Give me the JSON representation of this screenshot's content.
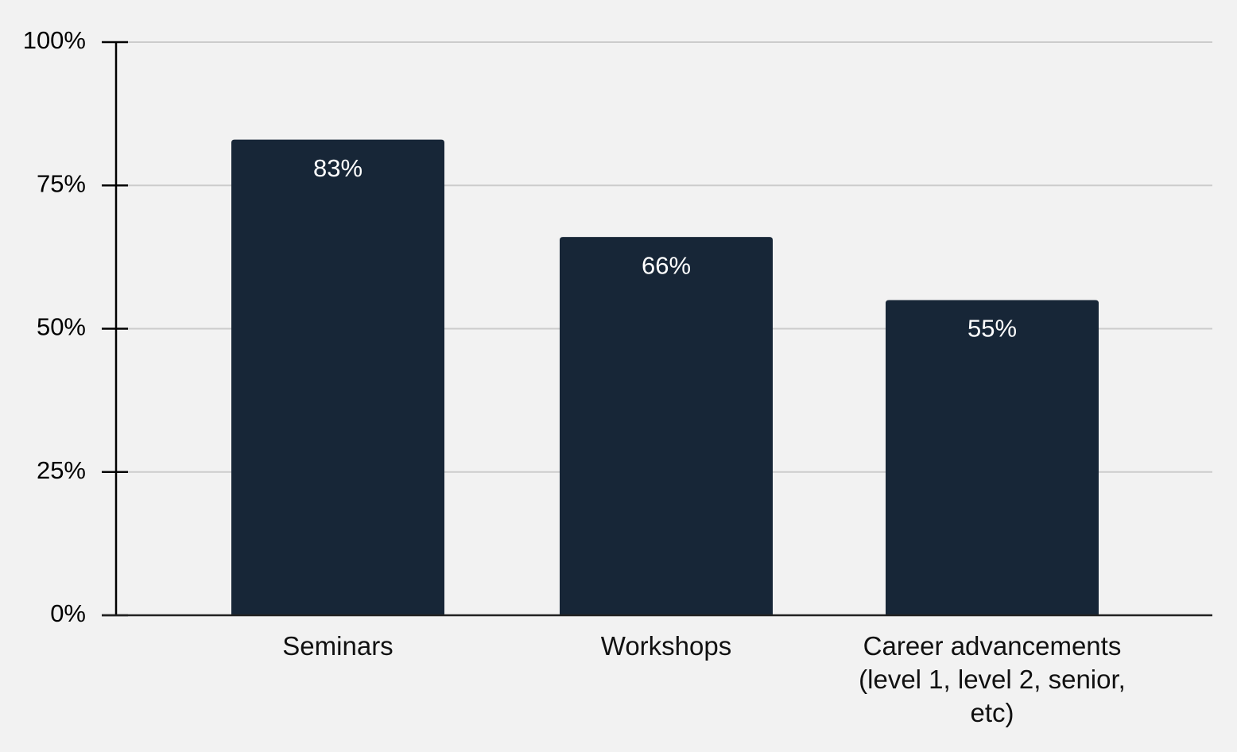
{
  "chart_data": {
    "type": "bar",
    "categories": [
      [
        "Seminars"
      ],
      [
        "Workshops"
      ],
      [
        "Career advancements",
        "(level 1, level 2, senior,",
        "etc)"
      ]
    ],
    "values": [
      83,
      66,
      55
    ],
    "data_labels": [
      "83%",
      "66%",
      "55%"
    ],
    "ylim": [
      0,
      100
    ],
    "yticks": [
      0,
      25,
      50,
      75,
      100
    ],
    "ytick_labels": [
      "0%",
      "25%",
      "50%",
      "75%",
      "100%"
    ],
    "grid": true,
    "legend": "none",
    "colors": {
      "bar": "#172637",
      "grid": "#cccccc",
      "axis": "#000000",
      "background": "#f2f2f2"
    }
  }
}
